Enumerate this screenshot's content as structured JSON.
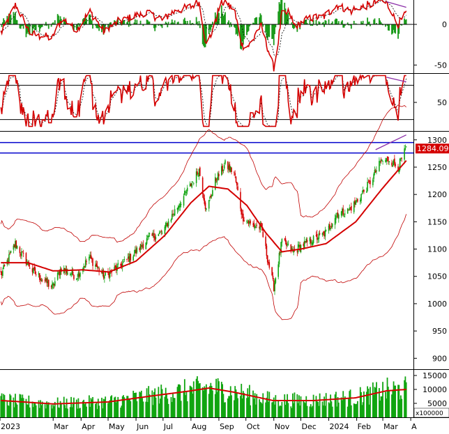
{
  "chart_data": [
    {
      "type": "area",
      "panel": "macd",
      "y_ticks": [
        "0",
        "-50"
      ],
      "ylim": [
        -60,
        30
      ],
      "reference_lines": [
        0
      ],
      "colors": {
        "line": "#d40000",
        "signal": "#000000",
        "histogram": "#1a9a1a",
        "divergence": "#8b2fa8"
      },
      "divergence_line": {
        "x0": "2024-03-05",
        "y0": 28,
        "x1": "2024-03-27",
        "y1": 21
      }
    },
    {
      "type": "line",
      "panel": "rsi",
      "y_ticks": [
        "50"
      ],
      "ylim": [
        0,
        100
      ],
      "reference_lines": [
        80,
        20
      ],
      "colors": {
        "line": "#d40000",
        "signal": "#000000",
        "divergence": "#8b2fa8"
      },
      "divergence_line": {
        "x0": "2024-03-05",
        "y0": 94,
        "x1": "2024-03-27",
        "y1": 86
      }
    },
    {
      "type": "candlestick",
      "panel": "price",
      "y_ticks": [
        "1300",
        "1250",
        "1200",
        "1150",
        "1100",
        "1050",
        "1000",
        "950",
        "900"
      ],
      "ylim": [
        880,
        1315
      ],
      "last_price_label": "1284.090",
      "last_price": 1284.09,
      "horizontal_lines": [
        1295,
        1276
      ],
      "trend_line": {
        "x0": "2024-02-22",
        "y0": 1282,
        "x1": "2024-03-27",
        "y1": 1309
      },
      "colors": {
        "up": "#11a511",
        "down": "#d40000",
        "ma": "#d40000",
        "band": "#c00000",
        "hline": "#0000cc",
        "trend": "#8b2fa8",
        "label_bg": "#d40000"
      },
      "key_points": [
        {
          "date": "2023-01-03",
          "close": 1055
        },
        {
          "date": "2023-01-18",
          "close": 1110
        },
        {
          "date": "2023-02-06",
          "close": 1060
        },
        {
          "date": "2023-02-28",
          "close": 1030
        },
        {
          "date": "2023-03-10",
          "close": 1065
        },
        {
          "date": "2023-03-27",
          "close": 1050
        },
        {
          "date": "2023-04-10",
          "close": 1085
        },
        {
          "date": "2023-04-27",
          "close": 1050
        },
        {
          "date": "2023-05-15",
          "close": 1070
        },
        {
          "date": "2023-06-01",
          "close": 1095
        },
        {
          "date": "2023-06-15",
          "close": 1120
        },
        {
          "date": "2023-06-30",
          "close": 1130
        },
        {
          "date": "2023-07-14",
          "close": 1170
        },
        {
          "date": "2023-07-31",
          "close": 1215
        },
        {
          "date": "2023-08-10",
          "close": 1245
        },
        {
          "date": "2023-08-18",
          "close": 1170
        },
        {
          "date": "2023-08-28",
          "close": 1225
        },
        {
          "date": "2023-09-08",
          "close": 1255
        },
        {
          "date": "2023-09-18",
          "close": 1240
        },
        {
          "date": "2023-09-27",
          "close": 1160
        },
        {
          "date": "2023-10-06",
          "close": 1145
        },
        {
          "date": "2023-10-18",
          "close": 1140
        },
        {
          "date": "2023-10-26",
          "close": 1075
        },
        {
          "date": "2023-11-01",
          "close": 1030
        },
        {
          "date": "2023-11-10",
          "close": 1115
        },
        {
          "date": "2023-11-22",
          "close": 1095
        },
        {
          "date": "2023-12-05",
          "close": 1110
        },
        {
          "date": "2023-12-18",
          "close": 1120
        },
        {
          "date": "2023-12-29",
          "close": 1130
        },
        {
          "date": "2024-01-10",
          "close": 1165
        },
        {
          "date": "2024-01-22",
          "close": 1170
        },
        {
          "date": "2024-01-31",
          "close": 1185
        },
        {
          "date": "2024-02-15",
          "close": 1220
        },
        {
          "date": "2024-02-28",
          "close": 1260
        },
        {
          "date": "2024-03-08",
          "close": 1265
        },
        {
          "date": "2024-03-18",
          "close": 1250
        },
        {
          "date": "2024-03-27",
          "close": 1284
        }
      ],
      "bollinger_ma_points": [
        {
          "date": "2023-01-03",
          "ma": 1075
        },
        {
          "date": "2023-02-01",
          "ma": 1075
        },
        {
          "date": "2023-03-01",
          "ma": 1060
        },
        {
          "date": "2023-04-03",
          "ma": 1062
        },
        {
          "date": "2023-05-02",
          "ma": 1058
        },
        {
          "date": "2023-06-01",
          "ma": 1078
        },
        {
          "date": "2023-07-03",
          "ma": 1125
        },
        {
          "date": "2023-08-01",
          "ma": 1185
        },
        {
          "date": "2023-08-21",
          "ma": 1215
        },
        {
          "date": "2023-09-11",
          "ma": 1210
        },
        {
          "date": "2023-10-02",
          "ma": 1180
        },
        {
          "date": "2023-10-23",
          "ma": 1130
        },
        {
          "date": "2023-11-10",
          "ma": 1095
        },
        {
          "date": "2023-12-01",
          "ma": 1100
        },
        {
          "date": "2023-12-29",
          "ma": 1110
        },
        {
          "date": "2024-01-31",
          "ma": 1150
        },
        {
          "date": "2024-02-29",
          "ma": 1210
        },
        {
          "date": "2024-03-27",
          "ma": 1262
        }
      ]
    },
    {
      "type": "bar",
      "panel": "volume",
      "y_ticks": [
        "15000",
        "10000",
        "5000"
      ],
      "unit_label": "x100000",
      "ylim": [
        0,
        17000
      ],
      "colors": {
        "bar": "#11a511",
        "ma": "#d40000"
      },
      "key_points": [
        {
          "date": "2023-01-03",
          "vol": 6000
        },
        {
          "date": "2023-03-01",
          "vol": 4800
        },
        {
          "date": "2023-05-01",
          "vol": 5500
        },
        {
          "date": "2023-06-15",
          "vol": 7500
        },
        {
          "date": "2023-08-01",
          "vol": 9500
        },
        {
          "date": "2023-08-21",
          "vol": 10500
        },
        {
          "date": "2023-09-18",
          "vol": 9000
        },
        {
          "date": "2023-10-31",
          "vol": 6000
        },
        {
          "date": "2023-12-15",
          "vol": 6000
        },
        {
          "date": "2024-01-31",
          "vol": 7000
        },
        {
          "date": "2024-03-05",
          "vol": 9500
        },
        {
          "date": "2024-03-27",
          "vol": 10000
        }
      ]
    }
  ],
  "x_axis": {
    "labels": [
      "2023",
      "Mar",
      "Apr",
      "May",
      "Jun",
      "Jul",
      "Aug",
      "Sep",
      "Oct",
      "Nov",
      "Dec",
      "2024",
      "Feb",
      "Mar",
      "A"
    ],
    "dates": [
      "2023-01-01",
      "2023-03-01",
      "2023-04-01",
      "2023-05-01",
      "2023-06-01",
      "2023-07-01",
      "2023-08-01",
      "2023-09-01",
      "2023-10-01",
      "2023-11-01",
      "2023-12-01",
      "2024-01-01",
      "2024-02-01",
      "2024-03-01",
      "2024-04-01"
    ],
    "range": [
      "2023-01-01",
      "2024-04-04"
    ]
  }
}
